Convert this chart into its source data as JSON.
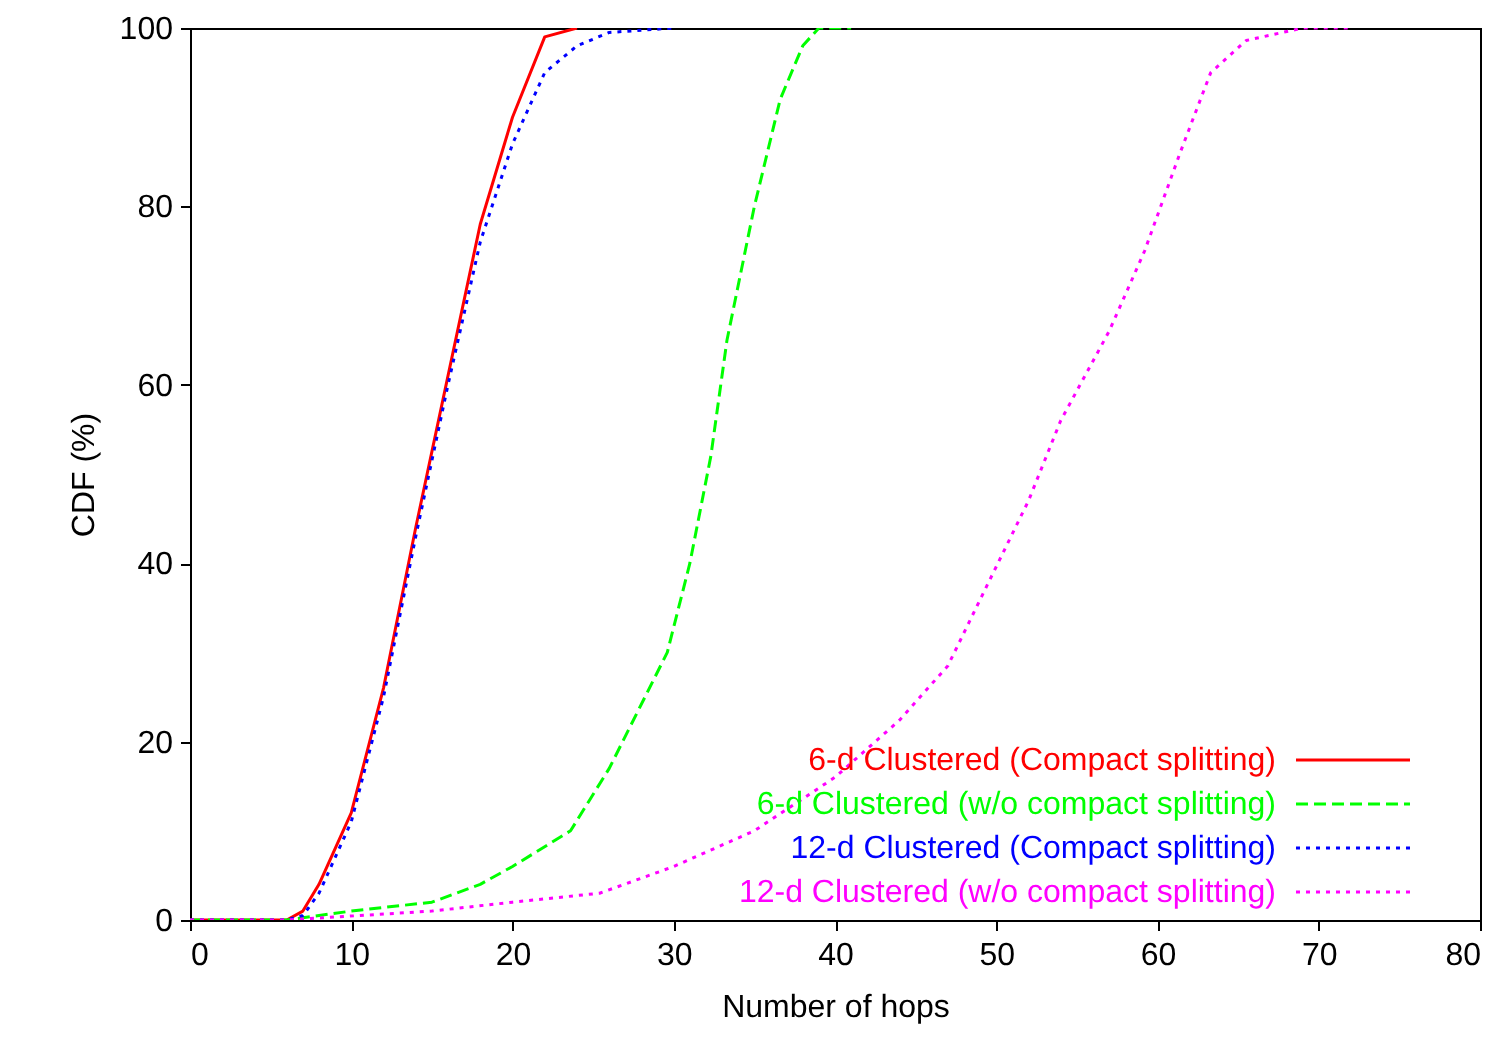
{
  "chart_data": {
    "type": "line",
    "xlabel": "Number of hops",
    "ylabel": "CDF (%)",
    "xlim": [
      0,
      80
    ],
    "xticks": [
      0,
      10,
      20,
      30,
      40,
      50,
      60,
      70,
      80
    ],
    "ylim": [
      0,
      100
    ],
    "yticks": [
      0,
      20,
      40,
      60,
      80,
      100
    ],
    "grid": false,
    "legend": "bottom right",
    "marker": "none",
    "series": [
      {
        "name": "6-d Clustered (Compact splitting)",
        "color": "#ff0000",
        "line_style": "solid",
        "x": [
          0,
          6,
          7,
          8,
          10,
          12,
          14,
          16,
          18,
          20,
          22,
          24
        ],
        "values": [
          0,
          0,
          1,
          4,
          12,
          26,
          44,
          61,
          78,
          90,
          99,
          100
        ]
      },
      {
        "name": "6-d Clustered (w/o compact splitting)",
        "color": "#00ff00",
        "line_style": "dashed",
        "x": [
          0,
          6,
          10,
          15,
          18,
          20,
          23.6,
          26,
          29.6,
          31,
          32.3,
          33.3,
          35,
          36.6,
          38,
          39,
          41
        ],
        "values": [
          0,
          0,
          1,
          2,
          4,
          6,
          10,
          17,
          30,
          40,
          52,
          65,
          80,
          92,
          98,
          100,
          100
        ]
      },
      {
        "name": "12-d Clustered (Compact splitting)",
        "color": "#0000ff",
        "line_style": "dotted",
        "x": [
          0,
          6,
          7,
          8,
          10,
          12,
          14,
          16,
          18,
          20,
          22,
          24,
          26,
          30
        ],
        "values": [
          0,
          0,
          0.5,
          3,
          11,
          25,
          43,
          60,
          76,
          87,
          95,
          98,
          99.5,
          100
        ]
      },
      {
        "name": "12-d Clustered (w/o compact splitting)",
        "color": "#ff00ff",
        "line_style": "dotted",
        "x": [
          0,
          6,
          15,
          20,
          25.4,
          30,
          35,
          40,
          44,
          47,
          49.4,
          52,
          54,
          57,
          59.2,
          61.4,
          63.3,
          65.5,
          69,
          72
        ],
        "values": [
          0,
          0,
          1,
          2,
          3,
          6,
          10,
          16,
          22.4,
          28.5,
          37.4,
          47,
          56,
          66,
          75,
          86,
          95,
          98.6,
          100,
          100
        ]
      }
    ]
  }
}
